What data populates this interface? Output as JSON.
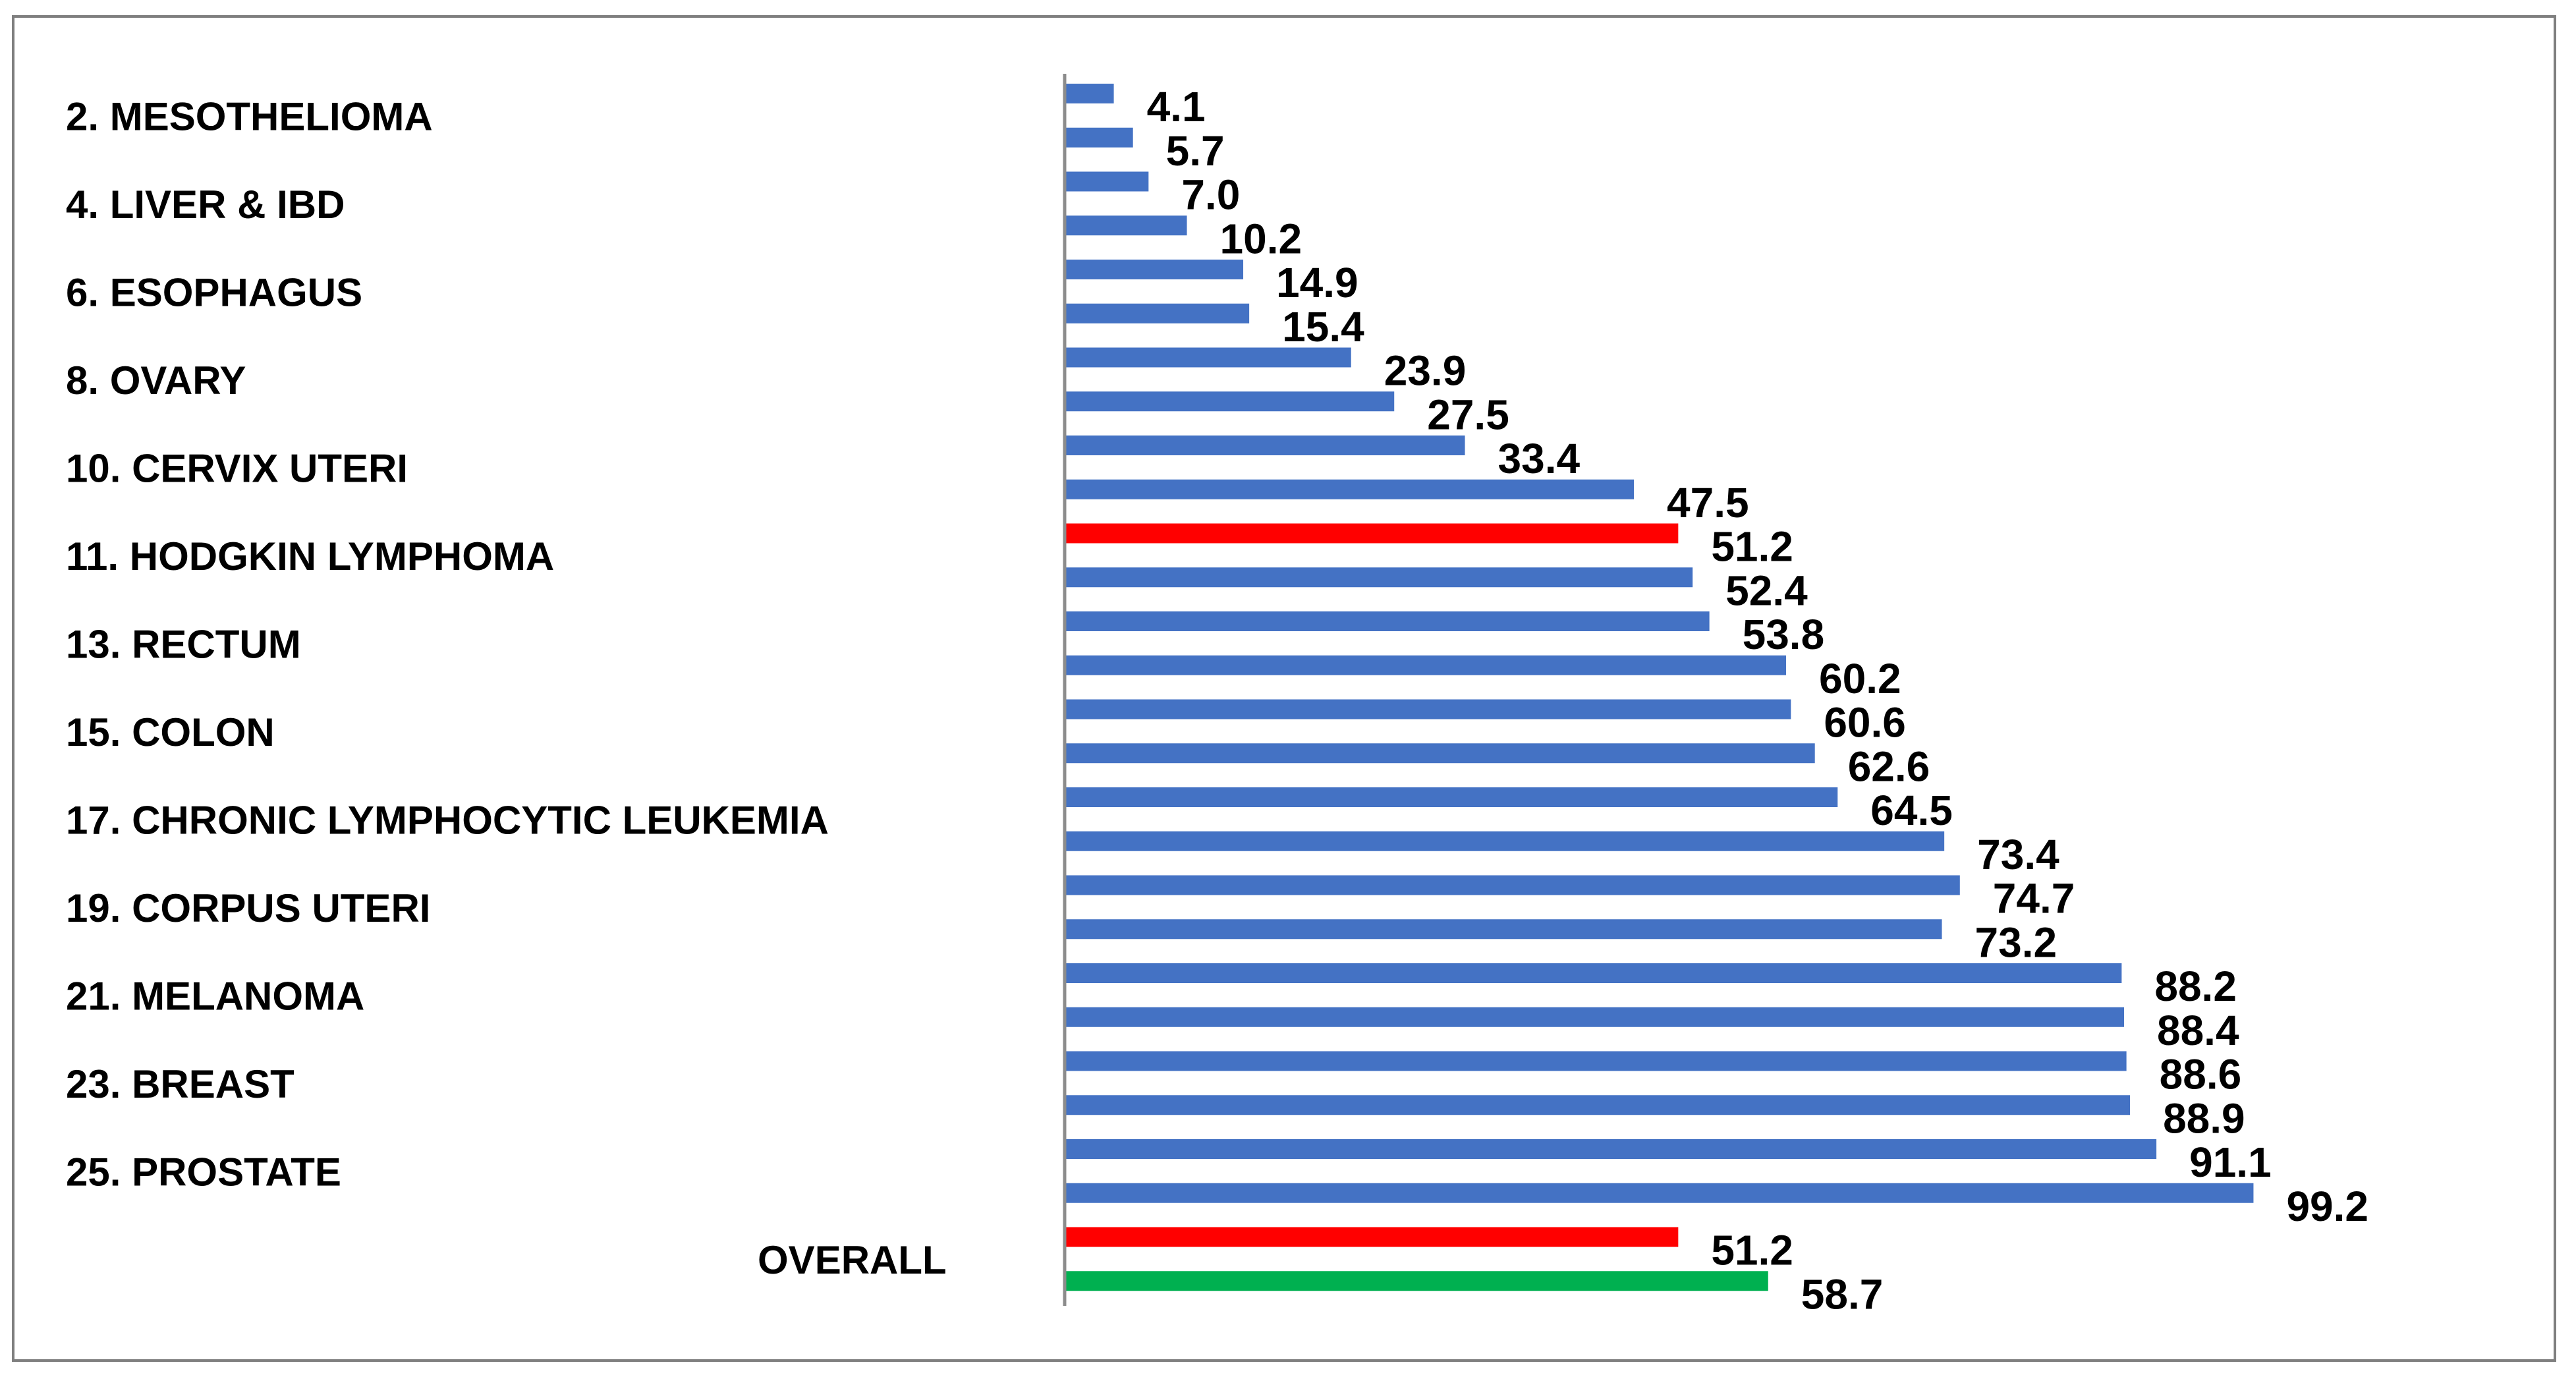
{
  "chart_data": {
    "type": "bar",
    "orientation": "horizontal",
    "title": "",
    "xlabel": "",
    "ylabel": "",
    "xlim": [
      0,
      100
    ],
    "grid": false,
    "legend": "none",
    "category_labels": [
      "2. MESOTHELIOMA",
      "4. LIVER & IBD",
      "6. ESOPHAGUS",
      "8. OVARY",
      "10. CERVIX UTERI",
      "11. HODGKIN LYMPHOMA",
      "13. RECTUM",
      "15. COLON",
      "17. CHRONIC LYMPHOCYTIC LEUKEMIA",
      "19. CORPUS UTERI",
      "21. MELANOMA",
      "23. BREAST",
      "25. PROSTATE",
      "OVERALL"
    ],
    "values": [
      4.1,
      5.7,
      7.0,
      10.2,
      14.9,
      15.4,
      23.9,
      27.5,
      33.4,
      47.5,
      51.2,
      52.4,
      53.8,
      60.2,
      60.6,
      62.6,
      64.5,
      73.4,
      74.7,
      73.2,
      88.2,
      88.4,
      88.6,
      88.9,
      91.1,
      99.2,
      51.2,
      58.7
    ],
    "value_labels": [
      "4.1",
      "5.7",
      "7.0",
      "10.2",
      "14.9",
      "15.4",
      "23.9",
      "27.5",
      "33.4",
      "47.5",
      "51.2",
      "52.4",
      "53.8",
      "60.2",
      "60.6",
      "62.6",
      "64.5",
      "73.4",
      "74.7",
      "73.2",
      "88.2",
      "88.4",
      "88.6",
      "88.9",
      "91.1",
      "99.2",
      "51.2",
      "58.7"
    ],
    "bar_colors": [
      "#4472C4",
      "#4472C4",
      "#4472C4",
      "#4472C4",
      "#4472C4",
      "#4472C4",
      "#4472C4",
      "#4472C4",
      "#4472C4",
      "#4472C4",
      "#FF0000",
      "#4472C4",
      "#4472C4",
      "#4472C4",
      "#4472C4",
      "#4472C4",
      "#4472C4",
      "#4472C4",
      "#4472C4",
      "#4472C4",
      "#4472C4",
      "#4472C4",
      "#4472C4",
      "#4472C4",
      "#4472C4",
      "#4472C4",
      "#FF0000",
      "#00B050"
    ],
    "colors": {
      "default": "#4472C4",
      "highlight": "#FF0000",
      "overall": "#00B050",
      "axis": "#7F7F7F",
      "frame": "#7F7F7F"
    }
  }
}
